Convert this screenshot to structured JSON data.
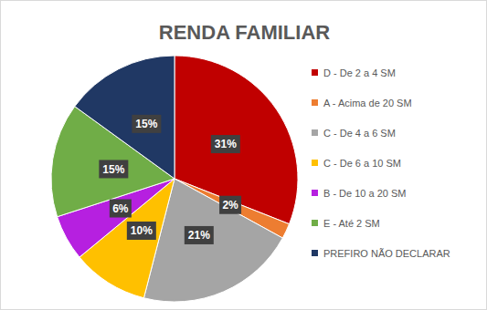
{
  "chart_data": {
    "type": "pie",
    "title": "RENDA FAMILIAR",
    "categories": [
      "D - De 2 a 4 SM",
      "A - Acima de 20 SM",
      "C - De 4 a 6 SM",
      "C - De 6 a 10 SM",
      "B - De 10 a 20 SM",
      "E - Até 2 SM",
      "PREFIRO NÃO DECLARAR"
    ],
    "values": [
      31,
      2,
      21,
      10,
      6,
      15,
      15
    ],
    "value_labels": [
      "31%",
      "2%",
      "21%",
      "10%",
      "6%",
      "15%",
      "15%"
    ],
    "colors": [
      "#C00000",
      "#ED7D31",
      "#A5A5A5",
      "#FFC000",
      "#B620E0",
      "#70AD47",
      "#203864"
    ],
    "data_labels": true,
    "legend": "right"
  }
}
